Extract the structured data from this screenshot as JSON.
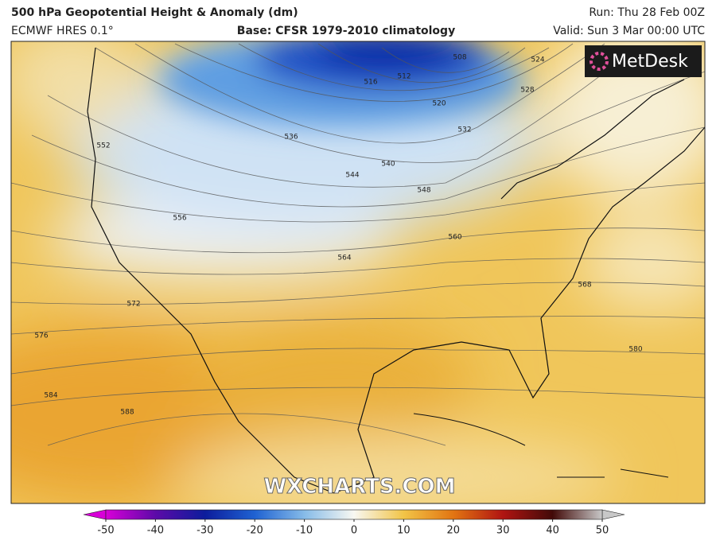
{
  "header": {
    "title": "500 hPa Geopotential Height & Anomaly (dm)",
    "model": "ECMWF HRES 0.1°",
    "base": "Base: CFSR 1979-2010 climatology",
    "run": "Run: Thu 28 Feb 00Z",
    "valid": "Valid: Sun 3 Mar 00:00 UTC"
  },
  "logo": "MetDesk",
  "watermark": "WXCHARTS.COM",
  "contour_labels": [
    "508",
    "512",
    "516",
    "520",
    "524",
    "528",
    "532",
    "536",
    "540",
    "544",
    "548",
    "552",
    "556",
    "560",
    "564",
    "568",
    "572",
    "576",
    "580",
    "584",
    "588"
  ],
  "colorbar": {
    "range": [
      -50,
      50
    ],
    "ticks": [
      -50,
      -40,
      -30,
      -20,
      -10,
      0,
      10,
      20,
      30,
      40,
      50
    ],
    "colors": [
      "#d800d8",
      "#5c0aa8",
      "#0c1d9c",
      "#1f62d2",
      "#86bbe8",
      "#f8f8f2",
      "#f2c447",
      "#e27512",
      "#b01412",
      "#420a08",
      "#c8c8c8"
    ]
  }
}
